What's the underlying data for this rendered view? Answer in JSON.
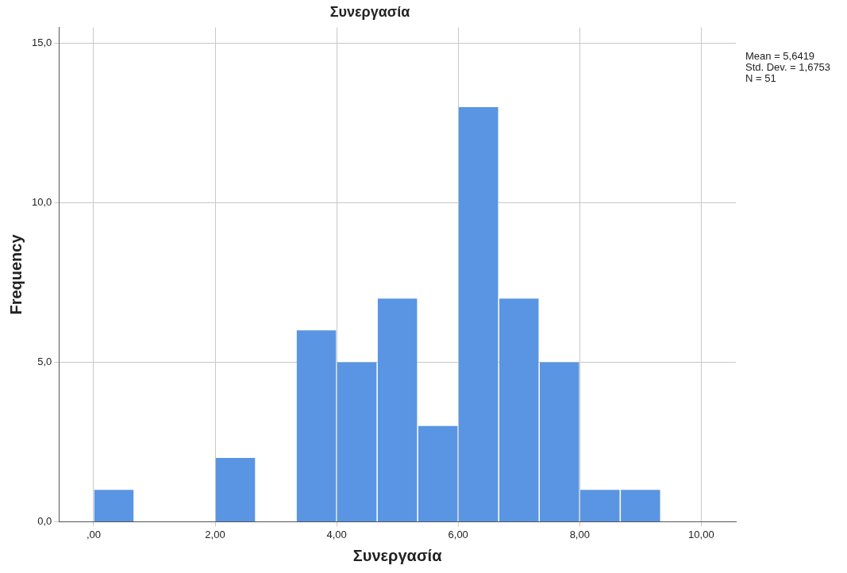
{
  "chart_data": {
    "type": "histogram",
    "title": "Συνεργασία",
    "xlabel": "Συνεργασία",
    "ylabel": "Frequency",
    "bins": [
      0,
      0.667,
      1.333,
      2,
      2.667,
      3.333,
      4,
      4.667,
      5.333,
      6,
      6.667,
      7.333,
      8,
      8.667,
      9.333
    ],
    "values": [
      1,
      0,
      0,
      2,
      0,
      6,
      5,
      7,
      3,
      13,
      7,
      5,
      1,
      1
    ],
    "color": "#5995e3",
    "xlim": [
      -0.57,
      10.57
    ],
    "xticks": [
      {
        "value": 0,
        "label": ",00"
      },
      {
        "value": 2,
        "label": "2,00"
      },
      {
        "value": 4,
        "label": "4,00"
      },
      {
        "value": 6,
        "label": "6,00"
      },
      {
        "value": 8,
        "label": "8,00"
      },
      {
        "value": 10,
        "label": "10,00"
      }
    ],
    "ylim": [
      0,
      15.5
    ],
    "yticks": [
      {
        "value": 0,
        "label": "0,0"
      },
      {
        "value": 5,
        "label": "5,0"
      },
      {
        "value": 10,
        "label": "10,0"
      },
      {
        "value": 15,
        "label": "15,0"
      }
    ],
    "grid": true,
    "annotations": [
      "Mean = 5,6419",
      "Std. Dev. = 1,6753",
      "N = 51"
    ]
  }
}
